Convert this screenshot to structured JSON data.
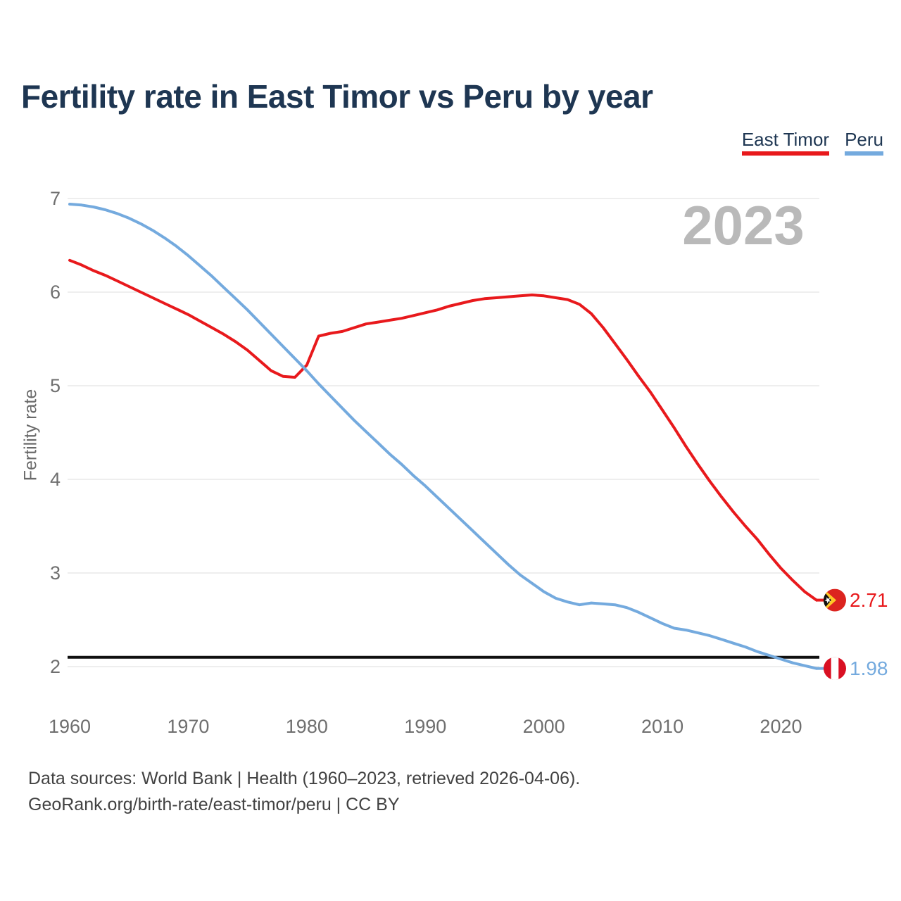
{
  "header": {
    "title": "Fertility rate in East Timor vs Peru by year"
  },
  "watermark": "2023",
  "y_axis": {
    "label": "Fertility rate",
    "ticks": [
      7,
      6,
      5,
      4,
      3,
      2
    ]
  },
  "x_axis": {
    "ticks": [
      1960,
      1970,
      1980,
      1990,
      2000,
      2010,
      2020
    ]
  },
  "reference_line": {
    "value": 2.1,
    "color": "#101010"
  },
  "footer": {
    "line1": "Data sources: World Bank | Health (1960–2023, retrieved 2026-04-06).",
    "line2": "GeoRank.org/birth-rate/east-timor/peru | CC BY"
  },
  "chart_data": {
    "type": "line",
    "title": "Fertility rate in East Timor vs Peru by year",
    "xlabel": "",
    "ylabel": "Fertility rate",
    "xlim": [
      1960,
      2023
    ],
    "ylim": [
      2,
      7
    ],
    "grid": "horizontal-gridlines",
    "legend_position": "top-right",
    "watermark_year": "2023",
    "replacement_level_line": 2.1,
    "x": [
      1960,
      1961,
      1962,
      1963,
      1964,
      1965,
      1966,
      1967,
      1968,
      1969,
      1970,
      1971,
      1972,
      1973,
      1974,
      1975,
      1976,
      1977,
      1978,
      1979,
      1980,
      1981,
      1982,
      1983,
      1984,
      1985,
      1986,
      1987,
      1988,
      1989,
      1990,
      1991,
      1992,
      1993,
      1994,
      1995,
      1996,
      1997,
      1998,
      1999,
      2000,
      2001,
      2002,
      2003,
      2004,
      2005,
      2006,
      2007,
      2008,
      2009,
      2010,
      2011,
      2012,
      2013,
      2014,
      2015,
      2016,
      2017,
      2018,
      2019,
      2020,
      2021,
      2022,
      2023
    ],
    "series": [
      {
        "name": "East Timor",
        "color": "#e8191c",
        "end_label": "2.71",
        "end_value": 2.71,
        "flag": "east-timor",
        "values": [
          6.34,
          6.29,
          6.23,
          6.18,
          6.12,
          6.06,
          6.0,
          5.94,
          5.88,
          5.82,
          5.76,
          5.69,
          5.62,
          5.55,
          5.47,
          5.38,
          5.27,
          5.16,
          5.1,
          5.09,
          5.22,
          5.53,
          5.56,
          5.58,
          5.62,
          5.66,
          5.68,
          5.7,
          5.72,
          5.75,
          5.78,
          5.81,
          5.85,
          5.88,
          5.91,
          5.93,
          5.94,
          5.95,
          5.96,
          5.97,
          5.96,
          5.94,
          5.92,
          5.87,
          5.77,
          5.62,
          5.45,
          5.28,
          5.1,
          4.93,
          4.74,
          4.55,
          4.35,
          4.16,
          3.98,
          3.81,
          3.65,
          3.5,
          3.36,
          3.2,
          3.05,
          2.92,
          2.8,
          2.71
        ]
      },
      {
        "name": "Peru",
        "color": "#74aade",
        "end_label": "1.98",
        "end_value": 1.98,
        "flag": "peru",
        "values": [
          6.94,
          6.93,
          6.91,
          6.88,
          6.84,
          6.79,
          6.73,
          6.66,
          6.58,
          6.49,
          6.39,
          6.28,
          6.17,
          6.05,
          5.93,
          5.81,
          5.68,
          5.55,
          5.42,
          5.29,
          5.16,
          5.02,
          4.89,
          4.76,
          4.63,
          4.51,
          4.39,
          4.27,
          4.16,
          4.04,
          3.93,
          3.81,
          3.69,
          3.57,
          3.45,
          3.33,
          3.21,
          3.09,
          2.98,
          2.89,
          2.8,
          2.73,
          2.69,
          2.66,
          2.68,
          2.67,
          2.66,
          2.63,
          2.58,
          2.52,
          2.46,
          2.41,
          2.39,
          2.36,
          2.33,
          2.29,
          2.25,
          2.21,
          2.16,
          2.12,
          2.08,
          2.04,
          2.01,
          1.98
        ]
      }
    ]
  },
  "colors": {
    "title_text": "#1e3652",
    "tick_text": "#6f6f6f",
    "watermark_text": "#b9b9b9",
    "gridline": "#e8e8e8",
    "source_text": "#424242",
    "timor_flag": {
      "red": "#dc241f",
      "yellow": "#ffc726",
      "black": "#111111",
      "star": "#ffffff"
    },
    "peru_flag": {
      "red": "#d91023",
      "white": "#ffffff"
    }
  }
}
